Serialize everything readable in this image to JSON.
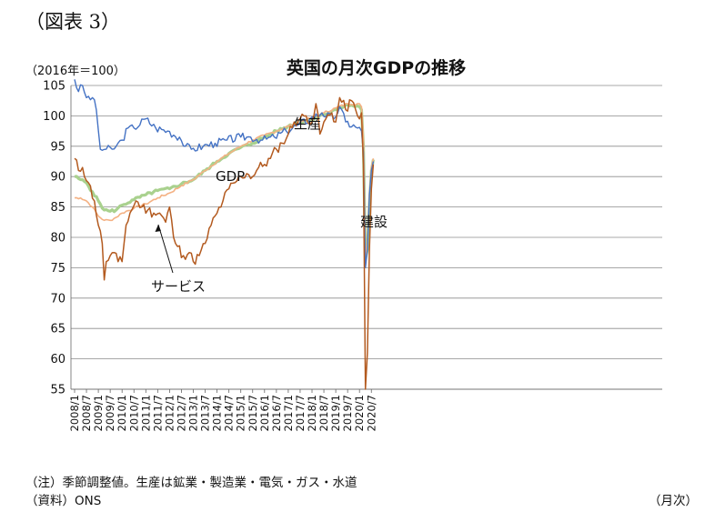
{
  "header": {
    "figure_label": "（図表 3）",
    "unit_label": "（2016年＝100）"
  },
  "footer": {
    "note": "（注）季節調整値。生産は鉱業・製造業・電気・ガス・水道",
    "source": "（資料）ONS",
    "x_unit": "（月次）"
  },
  "chart_data": {
    "type": "line",
    "title": "英国の月次GDPの推移",
    "xlabel": "",
    "ylabel": "",
    "ylim": [
      55,
      105
    ],
    "yticks": [
      55,
      60,
      65,
      70,
      75,
      80,
      85,
      90,
      95,
      100,
      105
    ],
    "xticks": [
      "2008/1",
      "2008/7",
      "2009/1",
      "2009/7",
      "2010/1",
      "2010/7",
      "2011/1",
      "2011/7",
      "2012/1",
      "2012/7",
      "2013/1",
      "2013/7",
      "2014/1",
      "2014/7",
      "2015/1",
      "2015/7",
      "2016/1",
      "2016/7",
      "2017/1",
      "2017/7",
      "2018/1",
      "2018/7",
      "2019/1",
      "2019/7",
      "2020/1",
      "2020/7"
    ],
    "grid": true,
    "legend": "none",
    "annotations": [
      "生産",
      "GDP",
      "建設",
      "サービス"
    ],
    "series": [
      {
        "name": "生産",
        "color": "#4472c4",
        "anchors": [
          [
            "2008/1",
            106
          ],
          [
            "2008/3",
            104
          ],
          [
            "2008/5",
            105
          ],
          [
            "2008/7",
            103
          ],
          [
            "2008/10",
            103
          ],
          [
            "2008/12",
            101
          ],
          [
            "2009/2",
            94.5
          ],
          [
            "2009/5",
            94.5
          ],
          [
            "2009/8",
            94.5
          ],
          [
            "2009/10",
            95
          ],
          [
            "2010/1",
            96
          ],
          [
            "2010/4",
            98
          ],
          [
            "2010/7",
            98
          ],
          [
            "2011/1",
            99.5
          ],
          [
            "2011/6",
            98
          ],
          [
            "2011/12",
            97.5
          ],
          [
            "2012/6",
            96.5
          ],
          [
            "2012/9",
            95
          ],
          [
            "2012/12",
            94.5
          ],
          [
            "2013/6",
            95
          ],
          [
            "2013/12",
            95.5
          ],
          [
            "2014/6",
            96
          ],
          [
            "2015/1",
            96.5
          ],
          [
            "2015/6",
            96.5
          ],
          [
            "2015/12",
            96
          ],
          [
            "2016/6",
            96.5
          ],
          [
            "2016/12",
            97.5
          ],
          [
            "2017/6",
            98.5
          ],
          [
            "2017/12",
            99.5
          ],
          [
            "2018/6",
            100.5
          ],
          [
            "2018/12",
            99.5
          ],
          [
            "2019/3",
            101.5
          ],
          [
            "2019/6",
            99
          ],
          [
            "2019/12",
            98
          ],
          [
            "2020/2",
            97.5
          ],
          [
            "2020/3",
            94
          ],
          [
            "2020/4",
            75
          ],
          [
            "2020/5",
            78
          ],
          [
            "2020/6",
            87
          ],
          [
            "2020/7",
            91
          ],
          [
            "2020/8",
            92.5
          ]
        ]
      },
      {
        "name": "GDP",
        "color": "#a9d18e",
        "anchors": [
          [
            "2008/1",
            90
          ],
          [
            "2008/4",
            89.5
          ],
          [
            "2008/7",
            89
          ],
          [
            "2008/10",
            87.5
          ],
          [
            "2009/1",
            86
          ],
          [
            "2009/4",
            84.5
          ],
          [
            "2009/7",
            84.3
          ],
          [
            "2009/10",
            84.5
          ],
          [
            "2010/1",
            85.3
          ],
          [
            "2010/7",
            86.2
          ],
          [
            "2011/1",
            87
          ],
          [
            "2011/7",
            87.7
          ],
          [
            "2012/1",
            88
          ],
          [
            "2012/7",
            88.8
          ],
          [
            "2013/1",
            89.5
          ],
          [
            "2013/7",
            91
          ],
          [
            "2014/1",
            92.5
          ],
          [
            "2014/7",
            93.8
          ],
          [
            "2015/1",
            94.8
          ],
          [
            "2015/7",
            95.5
          ],
          [
            "2016/1",
            96.5
          ],
          [
            "2016/7",
            97.5
          ],
          [
            "2017/1",
            98.3
          ],
          [
            "2017/7",
            99
          ],
          [
            "2018/1",
            99.5
          ],
          [
            "2018/7",
            100.3
          ],
          [
            "2019/1",
            101
          ],
          [
            "2019/7",
            101.8
          ],
          [
            "2020/1",
            101.5
          ],
          [
            "2020/2",
            101
          ],
          [
            "2020/3",
            95
          ],
          [
            "2020/4",
            76.5
          ],
          [
            "2020/5",
            78
          ],
          [
            "2020/6",
            85.5
          ],
          [
            "2020/7",
            91
          ],
          [
            "2020/8",
            92.8
          ]
        ]
      },
      {
        "name": "サービス",
        "color": "#f4b183",
        "anchors": [
          [
            "2008/1",
            86.5
          ],
          [
            "2008/4",
            86.5
          ],
          [
            "2008/7",
            86
          ],
          [
            "2008/10",
            85
          ],
          [
            "2009/1",
            83.5
          ],
          [
            "2009/4",
            82.8
          ],
          [
            "2009/7",
            82.8
          ],
          [
            "2009/10",
            83.3
          ],
          [
            "2010/1",
            84
          ],
          [
            "2010/7",
            84.8
          ],
          [
            "2011/1",
            85.5
          ],
          [
            "2011/7",
            86.5
          ],
          [
            "2012/1",
            87.3
          ],
          [
            "2012/7",
            88.5
          ],
          [
            "2013/1",
            89.5
          ],
          [
            "2013/7",
            91
          ],
          [
            "2014/1",
            92.5
          ],
          [
            "2014/7",
            93.8
          ],
          [
            "2015/1",
            95
          ],
          [
            "2015/7",
            96
          ],
          [
            "2016/1",
            96.8
          ],
          [
            "2016/7",
            97.5
          ],
          [
            "2017/1",
            98.3
          ],
          [
            "2017/7",
            99
          ],
          [
            "2018/1",
            99.7
          ],
          [
            "2018/7",
            100.5
          ],
          [
            "2019/1",
            101.3
          ],
          [
            "2019/7",
            102
          ],
          [
            "2020/1",
            102
          ],
          [
            "2020/2",
            101.5
          ],
          [
            "2020/3",
            96
          ],
          [
            "2020/4",
            77
          ],
          [
            "2020/5",
            79
          ],
          [
            "2020/6",
            87
          ],
          [
            "2020/7",
            91.5
          ],
          [
            "2020/8",
            93
          ]
        ]
      },
      {
        "name": "建設",
        "color": "#b35a1f",
        "anchors": [
          [
            "2008/1",
            93
          ],
          [
            "2008/3",
            91
          ],
          [
            "2008/5",
            91.5
          ],
          [
            "2008/8",
            89
          ],
          [
            "2008/11",
            86
          ],
          [
            "2009/1",
            82
          ],
          [
            "2009/3",
            79
          ],
          [
            "2009/4",
            73
          ],
          [
            "2009/5",
            76
          ],
          [
            "2009/7",
            77
          ],
          [
            "2009/9",
            77.5
          ],
          [
            "2009/11",
            76
          ],
          [
            "2010/1",
            76
          ],
          [
            "2010/3",
            82
          ],
          [
            "2010/5",
            84
          ],
          [
            "2010/8",
            86
          ],
          [
            "2010/11",
            85
          ],
          [
            "2011/2",
            84.5
          ],
          [
            "2011/5",
            84
          ],
          [
            "2011/8",
            84
          ],
          [
            "2011/11",
            82.5
          ],
          [
            "2012/1",
            85
          ],
          [
            "2012/3",
            80
          ],
          [
            "2012/5",
            78.5
          ],
          [
            "2012/8",
            77
          ],
          [
            "2012/11",
            77.5
          ],
          [
            "2013/1",
            76
          ],
          [
            "2013/4",
            77
          ],
          [
            "2013/7",
            79
          ],
          [
            "2013/10",
            82
          ],
          [
            "2014/1",
            84
          ],
          [
            "2014/4",
            86
          ],
          [
            "2014/7",
            88
          ],
          [
            "2014/10",
            89
          ],
          [
            "2015/1",
            90
          ],
          [
            "2015/4",
            90.5
          ],
          [
            "2015/7",
            90
          ],
          [
            "2015/10",
            91.5
          ],
          [
            "2016/1",
            92
          ],
          [
            "2016/4",
            93
          ],
          [
            "2016/7",
            94.5
          ],
          [
            "2016/10",
            95.5
          ],
          [
            "2017/1",
            97
          ],
          [
            "2017/4",
            99
          ],
          [
            "2017/7",
            99.5
          ],
          [
            "2017/10",
            100
          ],
          [
            "2018/1",
            99
          ],
          [
            "2018/3",
            102
          ],
          [
            "2018/5",
            97
          ],
          [
            "2018/8",
            99.5
          ],
          [
            "2018/11",
            100.5
          ],
          [
            "2019/1",
            99
          ],
          [
            "2019/3",
            103
          ],
          [
            "2019/6",
            101
          ],
          [
            "2019/9",
            102.5
          ],
          [
            "2019/12",
            100
          ],
          [
            "2020/2",
            100.5
          ],
          [
            "2020/3",
            92
          ],
          [
            "2020/4",
            55
          ],
          [
            "2020/5",
            61
          ],
          [
            "2020/6",
            78
          ],
          [
            "2020/7",
            88
          ],
          [
            "2020/8",
            92
          ]
        ]
      }
    ]
  }
}
